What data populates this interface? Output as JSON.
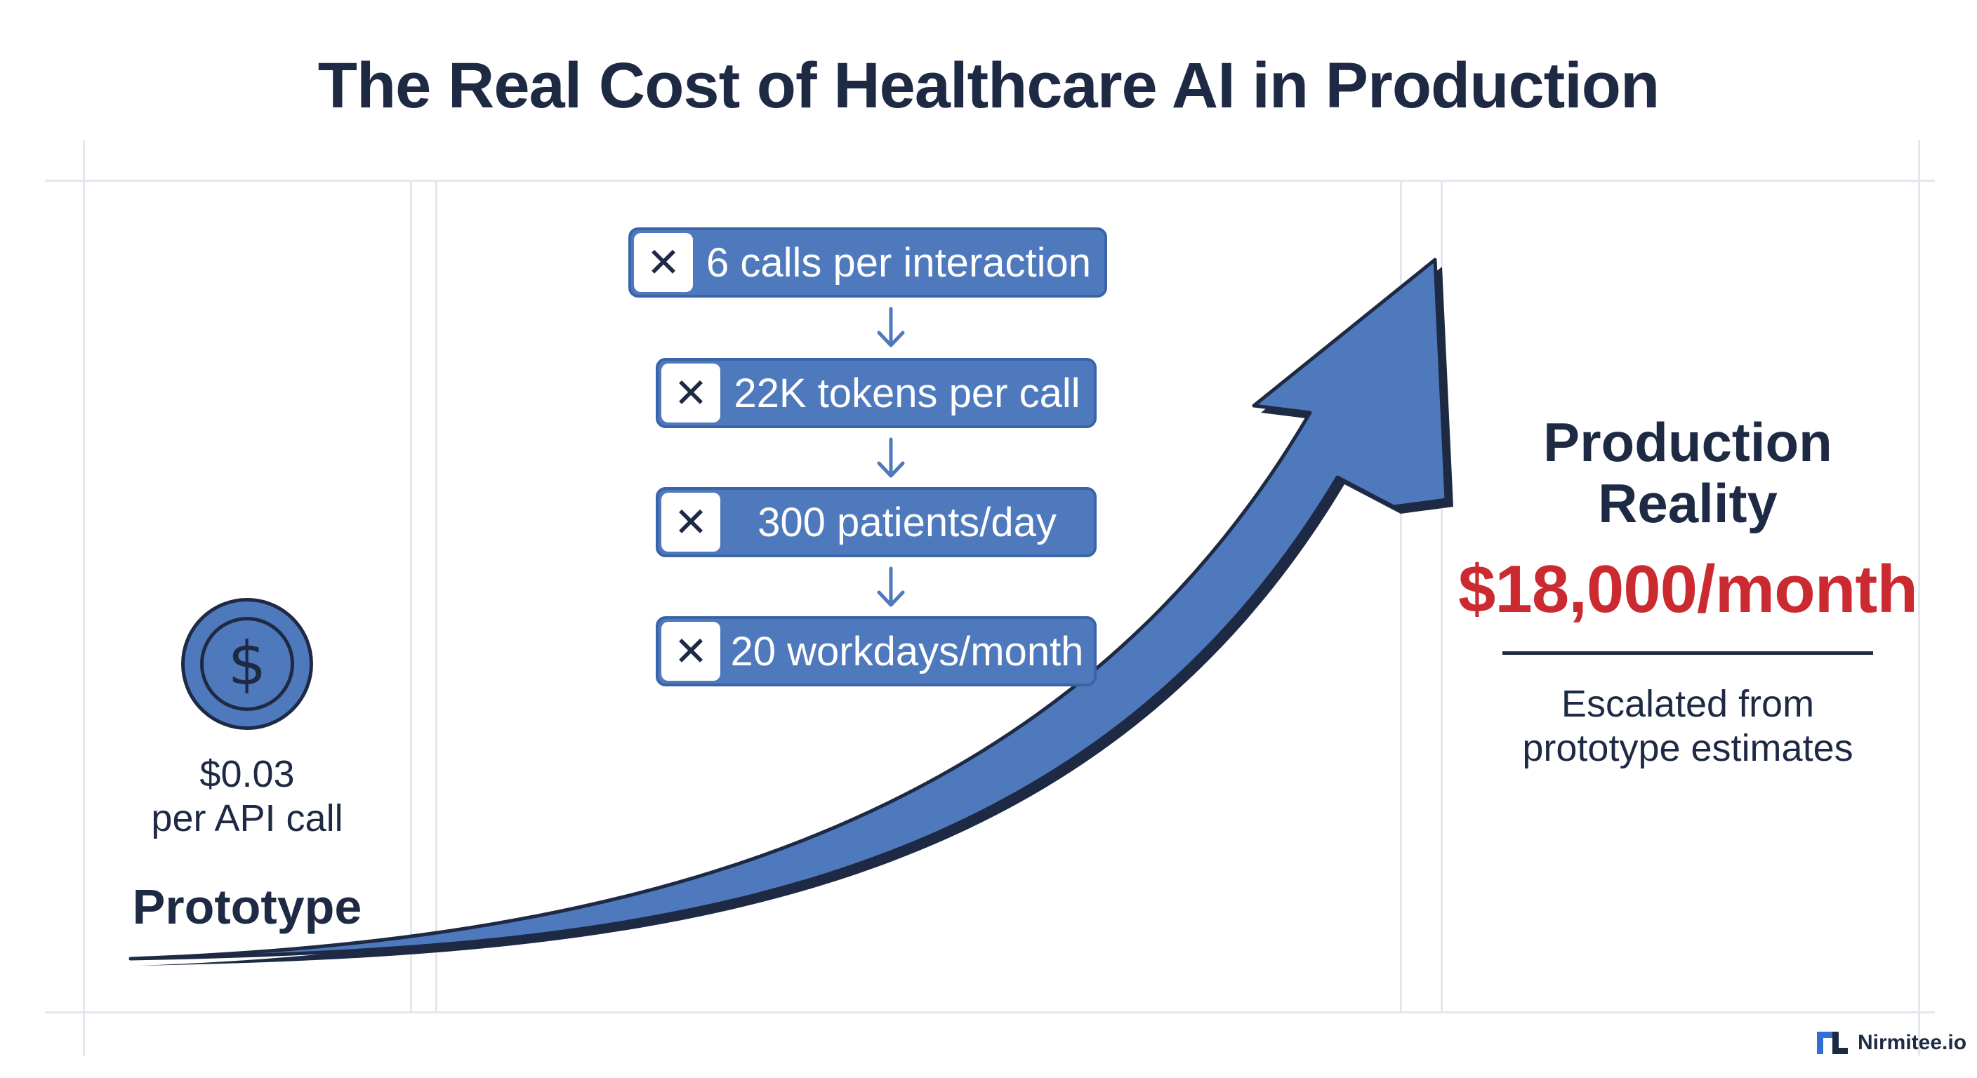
{
  "title": "The Real Cost of Healthcare AI in Production",
  "prototype": {
    "icon": "dollar-coin-icon",
    "price": "$0.03",
    "unit": "per API call",
    "label": "Prototype"
  },
  "multipliers": [
    {
      "icon": "multiply-icon",
      "label": "6 calls per interaction"
    },
    {
      "icon": "multiply-icon",
      "label": "22K tokens per call"
    },
    {
      "icon": "multiply-icon",
      "label": "300 patients/day"
    },
    {
      "icon": "multiply-icon",
      "label": "20 workdays/month"
    }
  ],
  "production": {
    "title_line1": "Production",
    "title_line2": "Reality",
    "cost": "$18,000/month",
    "note_line1": "Escalated from",
    "note_line2": "prototype estimates"
  },
  "brand": {
    "name": "Nirmitee.io",
    "logo": "nirmitee-logo-icon"
  },
  "colors": {
    "navy": "#1e2a44",
    "accent_blue": "#4f79bd",
    "cost_red": "#cc2a31"
  }
}
